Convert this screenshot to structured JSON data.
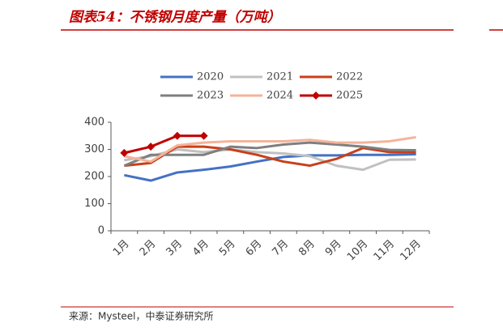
{
  "chart_data": {
    "type": "line",
    "title": "图表54：不锈钢月度产量（万吨）",
    "source": "来源：Mysteel，中泰证券研究所",
    "categories": [
      "1月",
      "2月",
      "3月",
      "4月",
      "5月",
      "6月",
      "7月",
      "8月",
      "9月",
      "10月",
      "11月",
      "12月"
    ],
    "series": [
      {
        "name": "2020",
        "color": "#4472c4",
        "values": [
          205,
          185,
          215,
          225,
          237,
          255,
          272,
          278,
          278,
          280,
          280,
          282
        ]
      },
      {
        "name": "2021",
        "color": "#c0c0c0",
        "values": [
          260,
          275,
          300,
          290,
          300,
          290,
          285,
          275,
          240,
          225,
          262,
          263
        ]
      },
      {
        "name": "2022",
        "color": "#c8401a",
        "values": [
          240,
          250,
          310,
          310,
          300,
          280,
          255,
          240,
          265,
          305,
          290,
          290
        ]
      },
      {
        "name": "2023",
        "color": "#7f7f7f",
        "values": [
          240,
          280,
          280,
          280,
          310,
          305,
          318,
          325,
          318,
          310,
          298,
          297
        ]
      },
      {
        "name": "2024",
        "color": "#f4b39a",
        "values": [
          275,
          255,
          315,
          325,
          330,
          330,
          330,
          335,
          325,
          325,
          330,
          345
        ]
      },
      {
        "name": "2025",
        "color": "#c00000",
        "marker": "diamond",
        "values": [
          287,
          310,
          350,
          350,
          null,
          null,
          null,
          null,
          null,
          null,
          null,
          null
        ]
      }
    ],
    "ylim": [
      0,
      400
    ],
    "yticks": [
      0,
      100,
      200,
      300,
      400
    ]
  }
}
